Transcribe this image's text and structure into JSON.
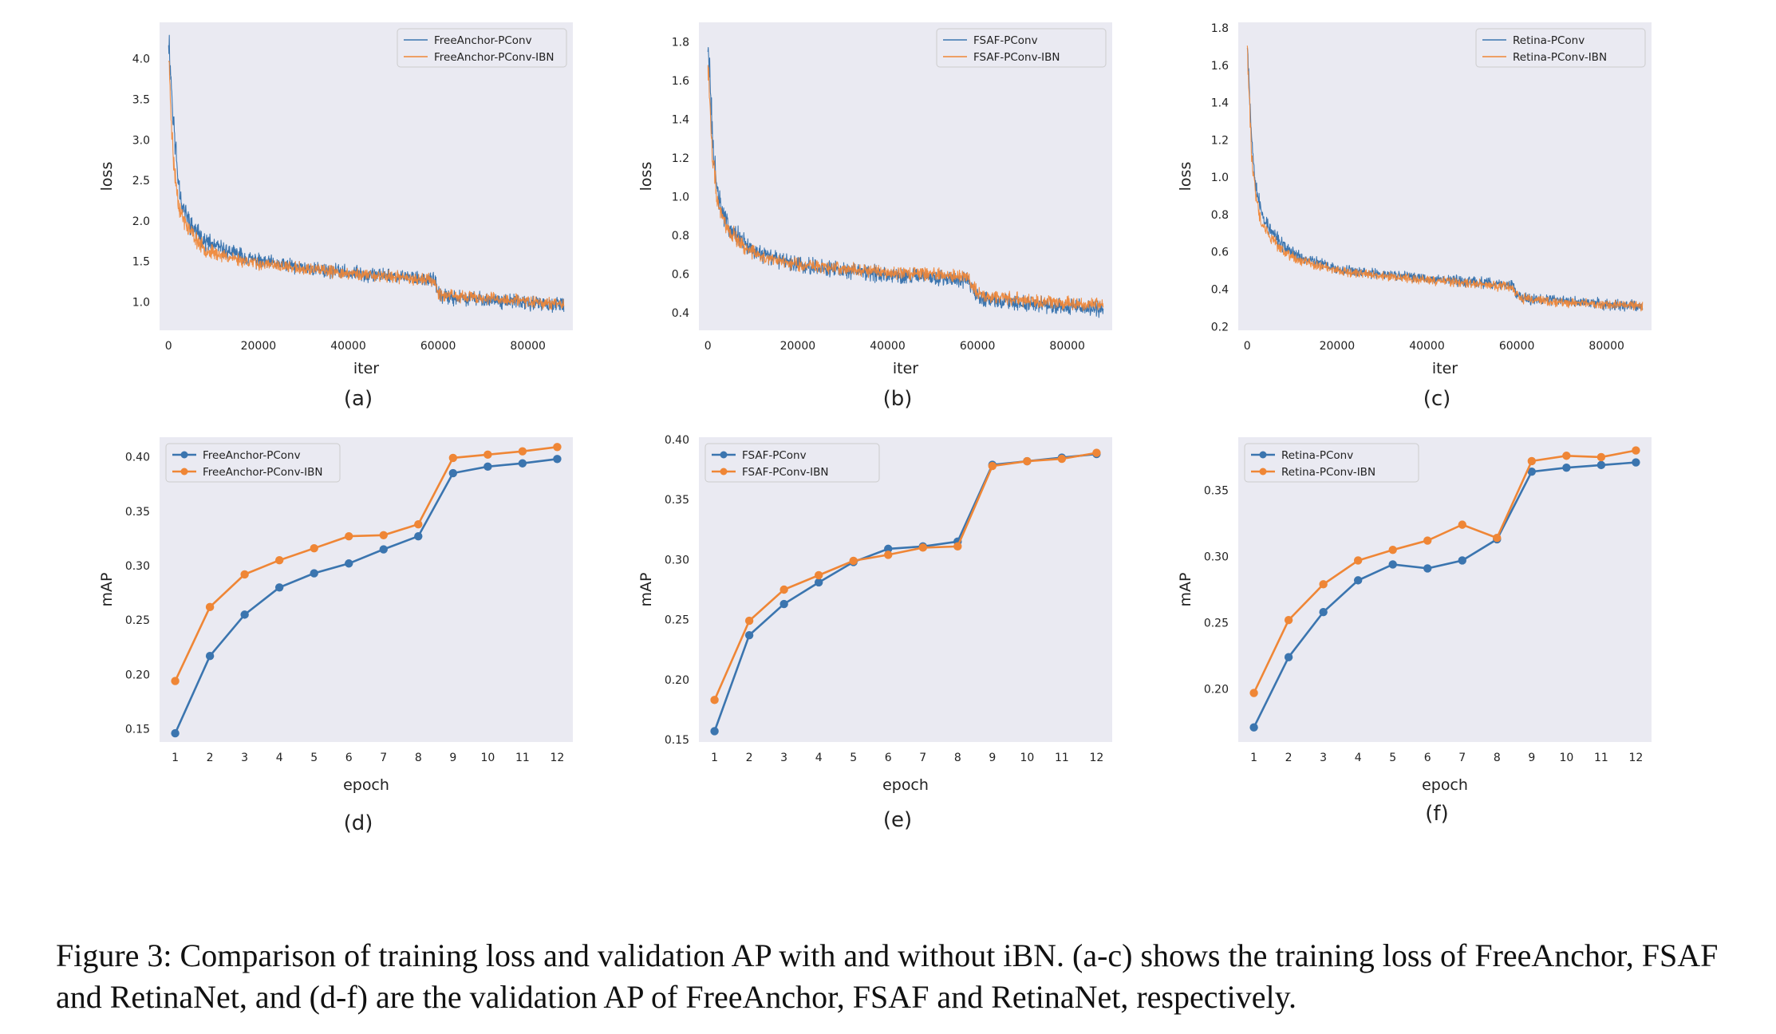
{
  "colors": {
    "blue": "#3b75af",
    "orange": "#ef8636",
    "panel_bg": "#eaeaf2",
    "text": "#222222"
  },
  "caption": "Figure 3: Comparison of training loss and validation AP with and without iBN. (a-c) shows the training loss of FreeAnchor, FSAF and RetinaNet, and (d-f) are the validation AP of FreeAnchor, FSAF and RetinaNet, respectively.",
  "chart_data": [
    {
      "type": "line",
      "id": "a",
      "label": "(a)",
      "xlabel": "iter",
      "ylabel": "loss",
      "xlim": [
        -2000,
        90000
      ],
      "ylim": [
        0.65,
        4.45
      ],
      "xticks": [
        0,
        20000,
        40000,
        60000,
        80000
      ],
      "yticks": [
        1.0,
        1.5,
        2.0,
        2.5,
        3.0,
        3.5,
        4.0
      ],
      "ytick_decimals": 1,
      "legend_loc": "top-right",
      "noise": true,
      "x_end": 88000,
      "series": [
        {
          "name": "FreeAnchor-PConv",
          "color": "#3b75af",
          "seed": 11,
          "amp": 0.11,
          "points": [
            [
              0,
              4.3
            ],
            [
              1000,
              3.3
            ],
            [
              2000,
              2.6
            ],
            [
              3000,
              2.2
            ],
            [
              5000,
              1.95
            ],
            [
              8000,
              1.75
            ],
            [
              12000,
              1.65
            ],
            [
              20000,
              1.5
            ],
            [
              30000,
              1.42
            ],
            [
              40000,
              1.36
            ],
            [
              50000,
              1.32
            ],
            [
              59000,
              1.28
            ],
            [
              60000,
              1.12
            ],
            [
              61000,
              1.06
            ],
            [
              70000,
              1.03
            ],
            [
              80000,
              0.99
            ],
            [
              88000,
              0.96
            ]
          ]
        },
        {
          "name": "FreeAnchor-PConv-IBN",
          "color": "#ef8636",
          "seed": 23,
          "amp": 0.09,
          "points": [
            [
              0,
              4.05
            ],
            [
              1000,
              2.8
            ],
            [
              2000,
              2.3
            ],
            [
              3000,
              2.05
            ],
            [
              5000,
              1.85
            ],
            [
              8000,
              1.65
            ],
            [
              12000,
              1.57
            ],
            [
              20000,
              1.47
            ],
            [
              30000,
              1.41
            ],
            [
              40000,
              1.35
            ],
            [
              50000,
              1.31
            ],
            [
              59000,
              1.27
            ],
            [
              60000,
              1.12
            ],
            [
              61000,
              1.08
            ],
            [
              70000,
              1.05
            ],
            [
              80000,
              1.01
            ],
            [
              88000,
              0.97
            ]
          ]
        }
      ]
    },
    {
      "type": "line",
      "id": "b",
      "label": "(b)",
      "xlabel": "iter",
      "ylabel": "loss",
      "xlim": [
        -2000,
        90000
      ],
      "ylim": [
        0.31,
        1.9
      ],
      "xticks": [
        0,
        20000,
        40000,
        60000,
        80000
      ],
      "yticks": [
        0.4,
        0.6,
        0.8,
        1.0,
        1.2,
        1.4,
        1.6,
        1.8
      ],
      "ytick_decimals": 1,
      "legend_loc": "top-right",
      "noise": true,
      "x_end": 88000,
      "series": [
        {
          "name": "FSAF-PConv",
          "color": "#3b75af",
          "seed": 31,
          "amp": 0.05,
          "points": [
            [
              0,
              1.83
            ],
            [
              1000,
              1.3
            ],
            [
              2000,
              1.05
            ],
            [
              3000,
              0.92
            ],
            [
              5000,
              0.84
            ],
            [
              8000,
              0.76
            ],
            [
              12000,
              0.7
            ],
            [
              20000,
              0.65
            ],
            [
              30000,
              0.62
            ],
            [
              40000,
              0.6
            ],
            [
              50000,
              0.58
            ],
            [
              58000,
              0.57
            ],
            [
              59500,
              0.5
            ],
            [
              61000,
              0.47
            ],
            [
              70000,
              0.45
            ],
            [
              80000,
              0.43
            ],
            [
              88000,
              0.42
            ]
          ]
        },
        {
          "name": "FSAF-PConv-IBN",
          "color": "#ef8636",
          "seed": 47,
          "amp": 0.04,
          "points": [
            [
              0,
              1.7
            ],
            [
              1000,
              1.2
            ],
            [
              2000,
              1.0
            ],
            [
              3000,
              0.9
            ],
            [
              5000,
              0.82
            ],
            [
              8000,
              0.74
            ],
            [
              12000,
              0.69
            ],
            [
              20000,
              0.65
            ],
            [
              30000,
              0.63
            ],
            [
              40000,
              0.61
            ],
            [
              50000,
              0.6
            ],
            [
              58000,
              0.58
            ],
            [
              59500,
              0.52
            ],
            [
              61000,
              0.49
            ],
            [
              70000,
              0.47
            ],
            [
              80000,
              0.45
            ],
            [
              88000,
              0.44
            ]
          ]
        }
      ]
    },
    {
      "type": "line",
      "id": "c",
      "label": "(c)",
      "xlabel": "iter",
      "ylabel": "loss",
      "xlim": [
        -2000,
        90000
      ],
      "ylim": [
        0.18,
        1.83
      ],
      "xticks": [
        0,
        20000,
        40000,
        60000,
        80000
      ],
      "yticks": [
        0.2,
        0.4,
        0.6,
        0.8,
        1.0,
        1.2,
        1.4,
        1.6,
        1.8
      ],
      "ytick_decimals": 1,
      "legend_loc": "top-right",
      "noise": true,
      "x_end": 88000,
      "series": [
        {
          "name": "Retina-PConv",
          "color": "#3b75af",
          "seed": 53,
          "amp": 0.035,
          "points": [
            [
              0,
              1.75
            ],
            [
              1000,
              1.2
            ],
            [
              2000,
              0.95
            ],
            [
              3000,
              0.82
            ],
            [
              5000,
              0.72
            ],
            [
              8000,
              0.63
            ],
            [
              12000,
              0.57
            ],
            [
              20000,
              0.51
            ],
            [
              30000,
              0.48
            ],
            [
              40000,
              0.46
            ],
            [
              50000,
              0.44
            ],
            [
              59000,
              0.42
            ],
            [
              60000,
              0.38
            ],
            [
              61000,
              0.35
            ],
            [
              70000,
              0.34
            ],
            [
              80000,
              0.32
            ],
            [
              88000,
              0.31
            ]
          ]
        },
        {
          "name": "Retina-PConv-IBN",
          "color": "#ef8636",
          "seed": 61,
          "amp": 0.03,
          "points": [
            [
              0,
              1.7
            ],
            [
              1000,
              1.1
            ],
            [
              2000,
              0.88
            ],
            [
              3000,
              0.76
            ],
            [
              5000,
              0.68
            ],
            [
              8000,
              0.6
            ],
            [
              12000,
              0.55
            ],
            [
              20000,
              0.5
            ],
            [
              30000,
              0.47
            ],
            [
              40000,
              0.45
            ],
            [
              50000,
              0.43
            ],
            [
              59000,
              0.41
            ],
            [
              60000,
              0.37
            ],
            [
              61000,
              0.35
            ],
            [
              70000,
              0.33
            ],
            [
              80000,
              0.32
            ],
            [
              88000,
              0.31
            ]
          ]
        }
      ]
    },
    {
      "type": "line",
      "id": "d",
      "label": "(d)",
      "xlabel": "epoch",
      "ylabel": "mAP",
      "xlim": [
        0.55,
        12.45
      ],
      "ylim": [
        0.138,
        0.418
      ],
      "xticks": [
        1,
        2,
        3,
        4,
        5,
        6,
        7,
        8,
        9,
        10,
        11,
        12
      ],
      "yticks": [
        0.15,
        0.2,
        0.25,
        0.3,
        0.35,
        0.4
      ],
      "ytick_decimals": 2,
      "legend_loc": "top-left",
      "noise": false,
      "markers": true,
      "x": [
        1,
        2,
        3,
        4,
        5,
        6,
        7,
        8,
        9,
        10,
        11,
        12
      ],
      "series": [
        {
          "name": "FreeAnchor-PConv",
          "color": "#3b75af",
          "values": [
            0.146,
            0.217,
            0.255,
            0.28,
            0.293,
            0.302,
            0.315,
            0.327,
            0.385,
            0.391,
            0.394,
            0.398
          ]
        },
        {
          "name": "FreeAnchor-PConv-IBN",
          "color": "#ef8636",
          "values": [
            0.194,
            0.262,
            0.292,
            0.305,
            0.316,
            0.327,
            0.328,
            0.338,
            0.399,
            0.402,
            0.405,
            0.409
          ]
        }
      ]
    },
    {
      "type": "line",
      "id": "e",
      "label": "(e)",
      "xlabel": "epoch",
      "ylabel": "mAP",
      "xlim": [
        0.55,
        12.45
      ],
      "ylim": [
        0.148,
        0.402
      ],
      "xticks": [
        1,
        2,
        3,
        4,
        5,
        6,
        7,
        8,
        9,
        10,
        11,
        12
      ],
      "yticks": [
        0.15,
        0.2,
        0.25,
        0.3,
        0.35,
        0.4
      ],
      "ytick_decimals": 2,
      "legend_loc": "top-left",
      "noise": false,
      "markers": true,
      "x": [
        1,
        2,
        3,
        4,
        5,
        6,
        7,
        8,
        9,
        10,
        11,
        12
      ],
      "series": [
        {
          "name": "FSAF-PConv",
          "color": "#3b75af",
          "values": [
            0.157,
            0.237,
            0.263,
            0.281,
            0.298,
            0.309,
            0.311,
            0.315,
            0.379,
            0.382,
            0.385,
            0.388
          ]
        },
        {
          "name": "FSAF-PConv-IBN",
          "color": "#ef8636",
          "values": [
            0.183,
            0.249,
            0.275,
            0.287,
            0.299,
            0.304,
            0.31,
            0.311,
            0.378,
            0.382,
            0.384,
            0.389
          ]
        }
      ]
    },
    {
      "type": "line",
      "id": "f",
      "label": "(f)",
      "xlabel": "epoch",
      "ylabel": "mAP",
      "xlim": [
        0.55,
        12.45
      ],
      "ylim": [
        0.16,
        0.39
      ],
      "xticks": [
        1,
        2,
        3,
        4,
        5,
        6,
        7,
        8,
        9,
        10,
        11,
        12
      ],
      "yticks": [
        0.2,
        0.25,
        0.3,
        0.35
      ],
      "ytick_decimals": 2,
      "legend_loc": "top-left",
      "noise": false,
      "markers": true,
      "x": [
        1,
        2,
        3,
        4,
        5,
        6,
        7,
        8,
        9,
        10,
        11,
        12
      ],
      "series": [
        {
          "name": "Retina-PConv",
          "color": "#3b75af",
          "values": [
            0.171,
            0.224,
            0.258,
            0.282,
            0.294,
            0.291,
            0.297,
            0.313,
            0.364,
            0.367,
            0.369,
            0.371
          ]
        },
        {
          "name": "Retina-PConv-IBN",
          "color": "#ef8636",
          "values": [
            0.197,
            0.252,
            0.279,
            0.297,
            0.305,
            0.312,
            0.324,
            0.314,
            0.372,
            0.376,
            0.375,
            0.38
          ]
        }
      ]
    }
  ]
}
